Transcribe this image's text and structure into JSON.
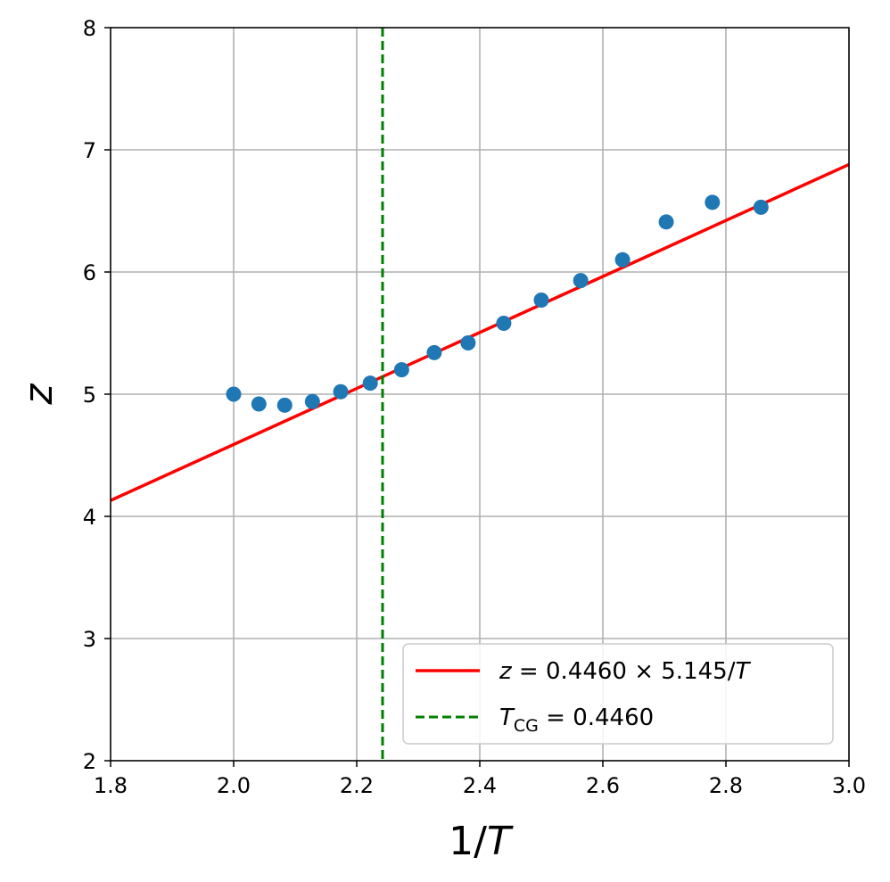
{
  "chart_data": {
    "type": "scatter",
    "xlabel": "1/T",
    "ylabel": "z",
    "xlim": [
      1.8,
      3.0
    ],
    "ylim": [
      2,
      8
    ],
    "xticks": [
      "1.8",
      "2.0",
      "2.2",
      "2.4",
      "2.6",
      "2.8",
      "3.0"
    ],
    "yticks": [
      "2",
      "3",
      "4",
      "5",
      "6",
      "7",
      "8"
    ],
    "grid": true,
    "legend_position": "lower-right",
    "series": [
      {
        "kind": "scatter",
        "color": "#1f77b4",
        "x": [
          2.0,
          2.041,
          2.083,
          2.128,
          2.174,
          2.222,
          2.273,
          2.326,
          2.381,
          2.439,
          2.5,
          2.564,
          2.632,
          2.703,
          2.778,
          2.857
        ],
        "y": [
          5.0,
          4.92,
          4.91,
          4.94,
          5.02,
          5.09,
          5.2,
          5.34,
          5.42,
          5.58,
          5.77,
          5.93,
          6.1,
          6.41,
          6.57,
          6.53
        ]
      },
      {
        "kind": "line",
        "name": "z = 0.4460 × 5.145/T",
        "color": "#ff0000",
        "x": [
          1.8,
          3.0
        ],
        "y": [
          4.13,
          6.88
        ]
      },
      {
        "kind": "vline",
        "name": "T_CG = 0.4460",
        "color": "#008000",
        "x": 2.242
      }
    ],
    "legend": [
      {
        "label_var": "z",
        "label_rest": " = 0.4460 × 5.145/",
        "label_var2": "T",
        "color": "#ff0000",
        "style": "solid"
      },
      {
        "label_var": "T",
        "label_sub": "CG",
        "label_rest": " = 0.4460",
        "color": "#008000",
        "style": "dashed"
      }
    ]
  }
}
